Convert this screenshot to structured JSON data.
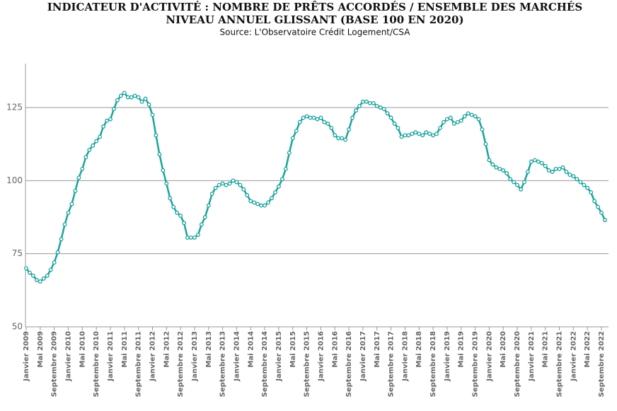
{
  "chart_data": {
    "type": "line",
    "title": "INDICATEUR D'ACTIVITÉ : NOMBRE DE PRÊTS ACCORDÉS / ENSEMBLE DES MARCHÉS",
    "subtitle": "NIVEAU ANNUEL GLISSANT (BASE 100 EN 2020)",
    "source": "Source: L'Observatoire Crédit Logement/CSA",
    "categories": [
      "Janvier 2009",
      null,
      null,
      null,
      "Mai 2009",
      null,
      null,
      null,
      "Septembre 2009",
      null,
      null,
      null,
      "Janvier 2010",
      null,
      null,
      null,
      "Mai 2010",
      null,
      null,
      null,
      "Septembre 2010",
      null,
      null,
      null,
      "Janvier 2011",
      null,
      null,
      null,
      "Mai 2011",
      null,
      null,
      null,
      "Septembre 2011",
      null,
      null,
      null,
      "Janvier 2012",
      null,
      null,
      null,
      "Mai 2012",
      null,
      null,
      null,
      "Septembre 2012",
      null,
      null,
      null,
      "Janvier 2013",
      null,
      null,
      null,
      "Mai 2013",
      null,
      null,
      null,
      "Septembre 2013",
      null,
      null,
      null,
      "Janvier 2014",
      null,
      null,
      null,
      "Mai 2014",
      null,
      null,
      null,
      "Septembre 2014",
      null,
      null,
      null,
      "Janvier 2015",
      null,
      null,
      null,
      "Mai 2015",
      null,
      null,
      null,
      "Septembre 2015",
      null,
      null,
      null,
      "Janvier 2016",
      null,
      null,
      null,
      "Mai 2016",
      null,
      null,
      null,
      "Septembre 2016",
      null,
      null,
      null,
      "Janvier 2017",
      null,
      null,
      null,
      "Mai 2017",
      null,
      null,
      null,
      "Septembre 2017",
      null,
      null,
      null,
      "Janvier 2018",
      null,
      null,
      null,
      "Mai 2018",
      null,
      null,
      null,
      "Septembre 2018",
      null,
      null,
      null,
      "Janvier 2019",
      null,
      null,
      null,
      "Mai 2019",
      null,
      null,
      null,
      "Septembre 2019",
      null,
      null,
      null,
      "Janvier 2020",
      null,
      null,
      null,
      "Mai 2020",
      null,
      null,
      null,
      "Septembre 2020",
      null,
      null,
      null,
      "Janvier 2021",
      null,
      null,
      null,
      "Mai 2021",
      null,
      null,
      null,
      "Septembre 2021",
      null,
      null,
      null,
      "Janvier 2022",
      null,
      null,
      null,
      "Mai 2022",
      null,
      null,
      null,
      "Septembre 2022",
      null
    ],
    "series": [
      {
        "color": "#1ba39c",
        "values": [
          70,
          68.5,
          67.5,
          66,
          65.5,
          66.5,
          67.5,
          69.5,
          72,
          75.5,
          80,
          85,
          89,
          92,
          96.5,
          101,
          104,
          108,
          110.5,
          112,
          113.5,
          115,
          118.5,
          120.5,
          121,
          124.5,
          127.5,
          129,
          130,
          128.5,
          128.5,
          129,
          128.5,
          127,
          128,
          126,
          122.5,
          115.5,
          109,
          103.5,
          99,
          94,
          91,
          89,
          88,
          85.5,
          80.5,
          80.5,
          80.5,
          81.5,
          85,
          87.5,
          91.5,
          95.5,
          97.5,
          98.5,
          99,
          98.5,
          99,
          100,
          99.5,
          98.5,
          97,
          95,
          93,
          92.5,
          92,
          91.5,
          91.5,
          92.5,
          94,
          96,
          98,
          100.5,
          104,
          109.5,
          114.5,
          117,
          120,
          121.5,
          122,
          121.5,
          121.5,
          121,
          121.5,
          120,
          119.5,
          118,
          115.5,
          114.5,
          114.5,
          114,
          117.5,
          121.5,
          124,
          125.5,
          127,
          127,
          126.5,
          126.5,
          125.5,
          125,
          124.5,
          123,
          121.5,
          119.5,
          118,
          115,
          115.5,
          115.5,
          116,
          116.5,
          116,
          115.5,
          116.5,
          116,
          115.5,
          116,
          118,
          120,
          121,
          121.5,
          119.5,
          120,
          120.5,
          122,
          123,
          122.5,
          122,
          121,
          117.5,
          112.5,
          107,
          105.5,
          104.5,
          104,
          103.5,
          102.5,
          100.5,
          99.5,
          98.5,
          97,
          99.5,
          103,
          106.5,
          107,
          106.5,
          106,
          105,
          103.5,
          103,
          104,
          104,
          104.5,
          103,
          102,
          101.5,
          100.5,
          99.5,
          98.5,
          97.5,
          96,
          93,
          91,
          89,
          86.5
        ]
      }
    ],
    "ylim": [
      50,
      140
    ],
    "yticks": [
      50,
      75,
      100,
      125
    ],
    "grid": true
  }
}
